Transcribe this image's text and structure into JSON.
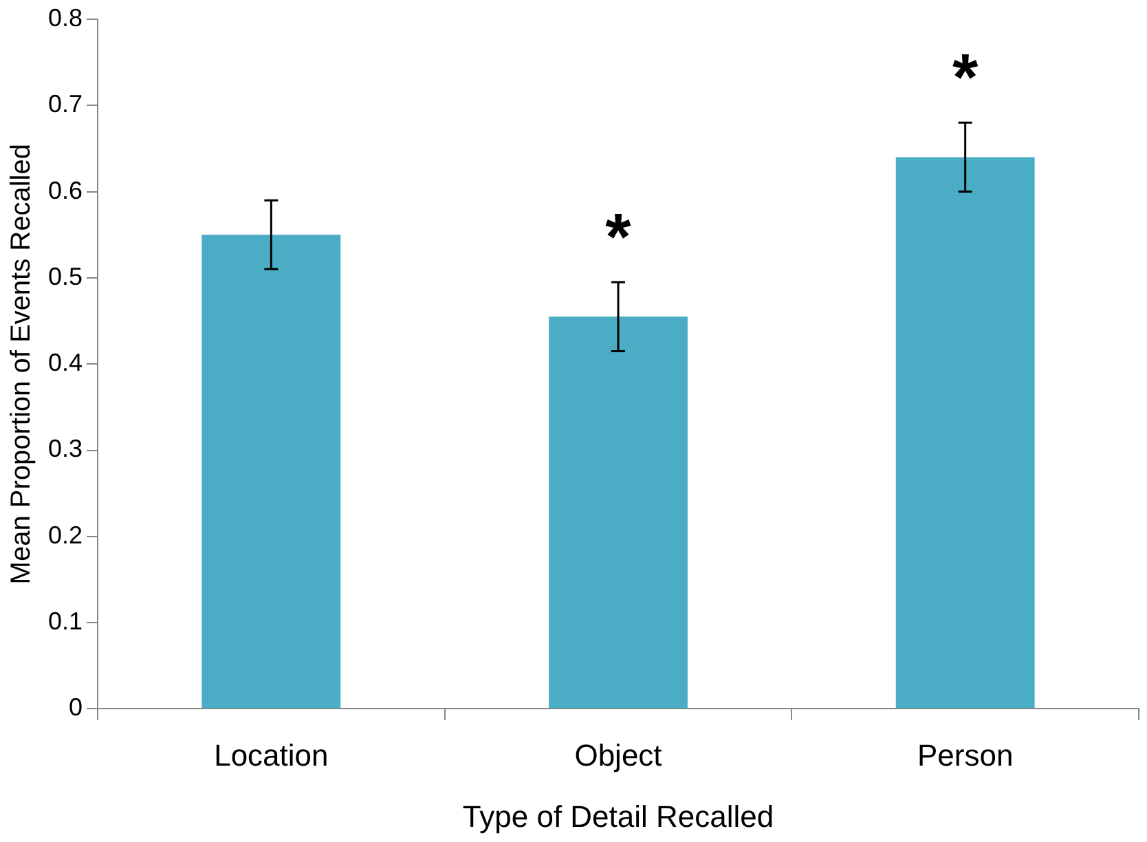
{
  "chart_data": {
    "type": "bar",
    "xlabel": "Type of Detail Recalled",
    "ylabel": "Mean Proportion of Events Recalled",
    "categories": [
      "Location",
      "Object",
      "Person"
    ],
    "values": [
      0.55,
      0.455,
      0.64
    ],
    "errors": [
      0.04,
      0.04,
      0.04
    ],
    "color": "#4bacc6",
    "ylim": [
      0,
      0.8
    ],
    "yticks": [
      0,
      0.1,
      0.2,
      0.3,
      0.4,
      0.5,
      0.6,
      0.7,
      0.8
    ],
    "grid": false,
    "legend": false,
    "annotations": [
      "*",
      "*"
    ]
  }
}
